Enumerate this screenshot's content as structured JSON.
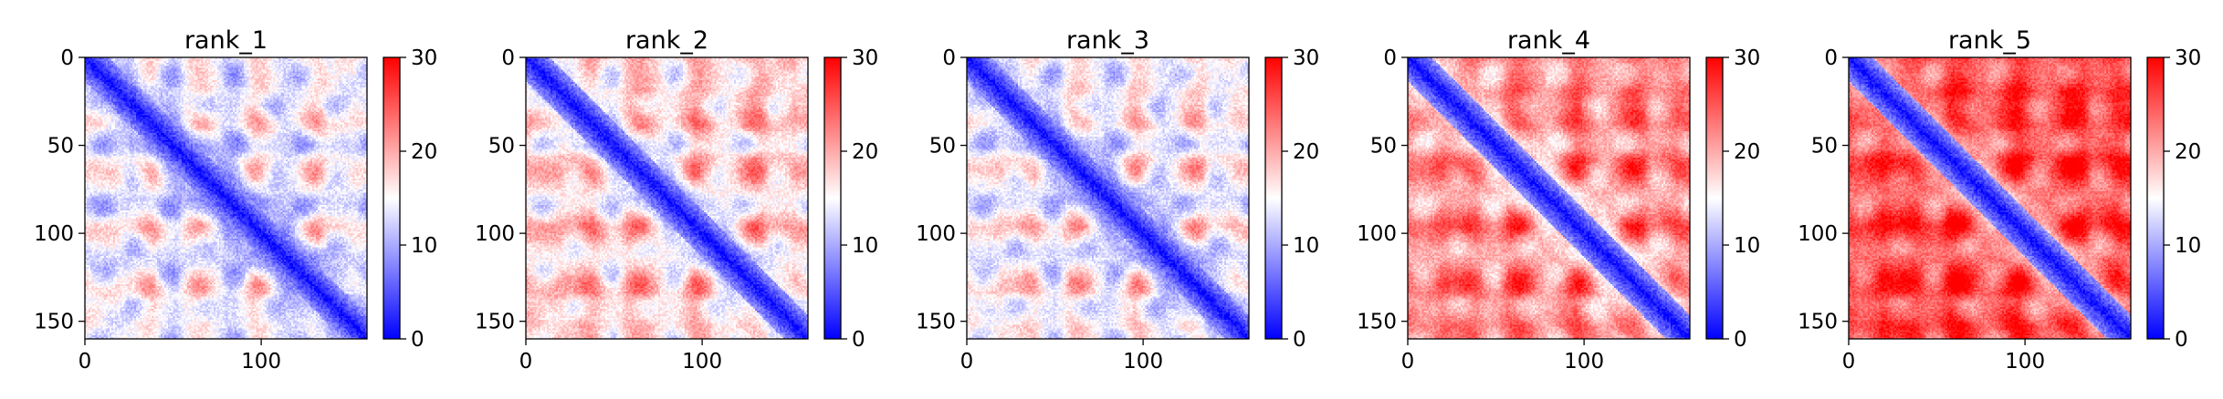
{
  "chart_data": [
    {
      "type": "heatmap",
      "title": "rank_1",
      "xlim": [
        0,
        160
      ],
      "ylim": [
        160,
        0
      ],
      "xticks": [
        0,
        100
      ],
      "yticks": [
        0,
        50,
        100,
        150
      ],
      "colorbar": {
        "ticks": [
          0,
          10,
          20,
          30
        ],
        "range": [
          0,
          30
        ],
        "colormap": "bwr"
      },
      "pattern": {
        "n_residues": 160,
        "red_level": 0.48,
        "spot_rows": [
          15,
          38,
          63,
          97,
          128,
          148
        ]
      }
    },
    {
      "type": "heatmap",
      "title": "rank_2",
      "xlim": [
        0,
        160
      ],
      "ylim": [
        160,
        0
      ],
      "xticks": [
        0,
        100
      ],
      "yticks": [
        0,
        50,
        100,
        150
      ],
      "colorbar": {
        "ticks": [
          0,
          10,
          20,
          30
        ],
        "range": [
          0,
          30
        ],
        "colormap": "bwr"
      },
      "pattern": {
        "n_residues": 160,
        "red_level": 0.58,
        "spot_rows": [
          15,
          38,
          63,
          97,
          128,
          148
        ]
      }
    },
    {
      "type": "heatmap",
      "title": "rank_3",
      "xlim": [
        0,
        160
      ],
      "ylim": [
        160,
        0
      ],
      "xticks": [
        0,
        100
      ],
      "yticks": [
        0,
        50,
        100,
        150
      ],
      "colorbar": {
        "ticks": [
          0,
          10,
          20,
          30
        ],
        "range": [
          0,
          30
        ],
        "colormap": "bwr"
      },
      "pattern": {
        "n_residues": 160,
        "red_level": 0.5,
        "spot_rows": [
          15,
          38,
          63,
          97,
          128,
          148
        ]
      }
    },
    {
      "type": "heatmap",
      "title": "rank_4",
      "xlim": [
        0,
        160
      ],
      "ylim": [
        160,
        0
      ],
      "xticks": [
        0,
        100
      ],
      "yticks": [
        0,
        50,
        100,
        150
      ],
      "colorbar": {
        "ticks": [
          0,
          10,
          20,
          30
        ],
        "range": [
          0,
          30
        ],
        "colormap": "bwr"
      },
      "pattern": {
        "n_residues": 160,
        "red_level": 0.72,
        "spot_rows": [
          15,
          38,
          63,
          97,
          128,
          148
        ]
      }
    },
    {
      "type": "heatmap",
      "title": "rank_5",
      "xlim": [
        0,
        160
      ],
      "ylim": [
        160,
        0
      ],
      "xticks": [
        0,
        100
      ],
      "yticks": [
        0,
        50,
        100,
        150
      ],
      "colorbar": {
        "ticks": [
          0,
          10,
          20,
          30
        ],
        "range": [
          0,
          30
        ],
        "colormap": "bwr"
      },
      "pattern": {
        "n_residues": 160,
        "red_level": 0.84,
        "spot_rows": [
          15,
          38,
          63,
          97,
          128,
          148
        ]
      }
    }
  ]
}
